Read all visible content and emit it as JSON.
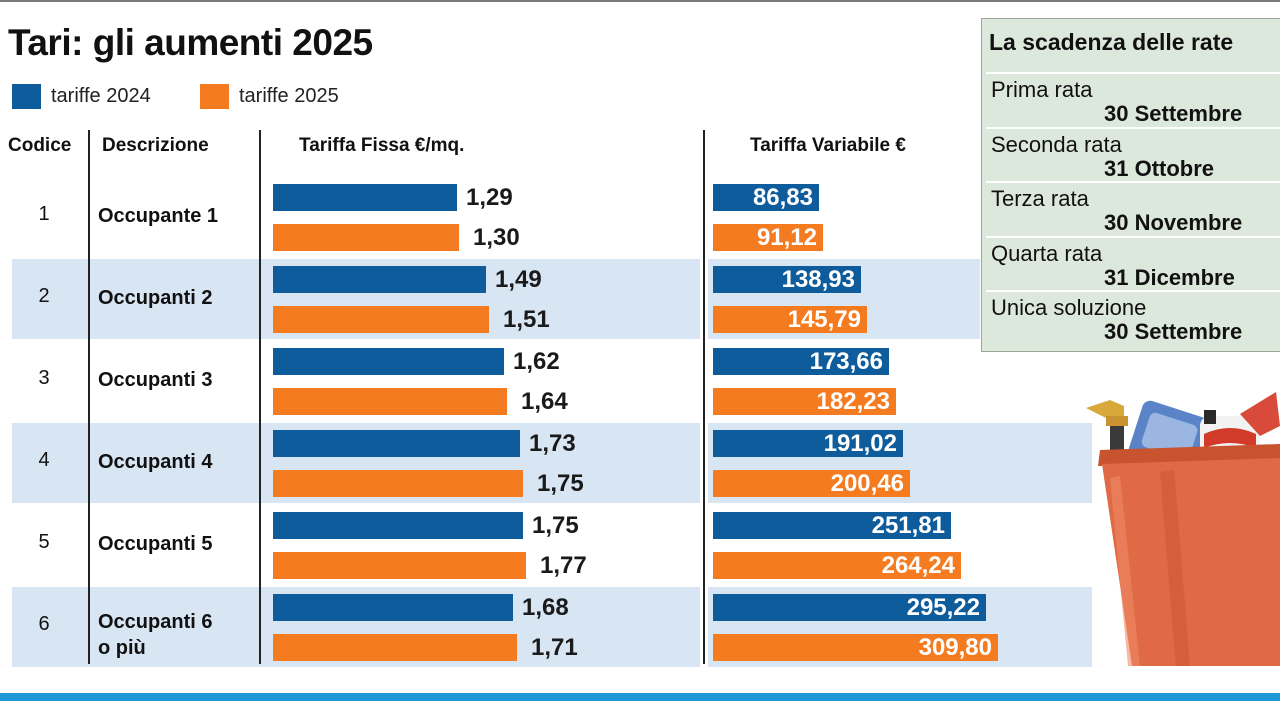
{
  "chart_data": {
    "type": "bar",
    "title": "Tari: gli aumenti 2025",
    "columns": {
      "code": "Codice",
      "description": "Descrizione",
      "fixed": "Tariffa Fissa €/mq.",
      "variable": "Tariffa Variabile €"
    },
    "series": [
      {
        "name": "tariffe 2024",
        "color": "#0e5c9c"
      },
      {
        "name": "tariffe 2025",
        "color": "#f47b20"
      }
    ],
    "rows": [
      {
        "code": "1",
        "desc": [
          "Occupante 1"
        ],
        "fixed": [
          1.29,
          1.3
        ],
        "fixed_labels": [
          "1,29",
          "1,30"
        ],
        "variable": [
          86.83,
          91.12
        ],
        "variable_labels": [
          "86,83",
          "91,12"
        ]
      },
      {
        "code": "2",
        "desc": [
          "Occupanti 2"
        ],
        "fixed": [
          1.49,
          1.51
        ],
        "fixed_labels": [
          "1,49",
          "1,51"
        ],
        "variable": [
          138.93,
          145.79
        ],
        "variable_labels": [
          "138,93",
          "145,79"
        ]
      },
      {
        "code": "3",
        "desc": [
          "Occupanti 3"
        ],
        "fixed": [
          1.62,
          1.64
        ],
        "fixed_labels": [
          "1,62",
          "1,64"
        ],
        "variable": [
          173.66,
          182.23
        ],
        "variable_labels": [
          "173,66",
          "182,23"
        ]
      },
      {
        "code": "4",
        "desc": [
          "Occupanti 4"
        ],
        "fixed": [
          1.73,
          1.75
        ],
        "fixed_labels": [
          "1,73",
          "1,75"
        ],
        "variable": [
          191.02,
          200.46
        ],
        "variable_labels": [
          "191,02",
          "200,46"
        ]
      },
      {
        "code": "5",
        "desc": [
          "Occupanti 5"
        ],
        "fixed": [
          1.75,
          1.77
        ],
        "fixed_labels": [
          "1,75",
          "1,77"
        ],
        "variable": [
          251.81,
          264.24
        ],
        "variable_labels": [
          "251,81",
          "264,24"
        ]
      },
      {
        "code": "6",
        "desc": [
          "Occupanti 6",
          "o più"
        ],
        "fixed": [
          1.68,
          1.71
        ],
        "fixed_labels": [
          "1,68",
          "1,71"
        ],
        "variable": [
          295.22,
          309.8
        ],
        "variable_labels": [
          "295,22",
          "309,80"
        ]
      }
    ]
  },
  "deadlines": {
    "title": "La scadenza delle rate",
    "items": [
      {
        "label": "Prima rata",
        "date": "30 Settembre"
      },
      {
        "label": "Seconda rata",
        "date": "31 Ottobre"
      },
      {
        "label": "Terza rata",
        "date": "30 Novembre"
      },
      {
        "label": "Quarta rata",
        "date": "31 Dicembre"
      },
      {
        "label": "Unica soluzione",
        "date": "30 Settembre"
      }
    ]
  },
  "colors": {
    "band": "#d8e6f4",
    "panel": "#dde8dc",
    "accent_line": "#1f9ad6"
  },
  "illustration": "cleaning-basket-icon"
}
